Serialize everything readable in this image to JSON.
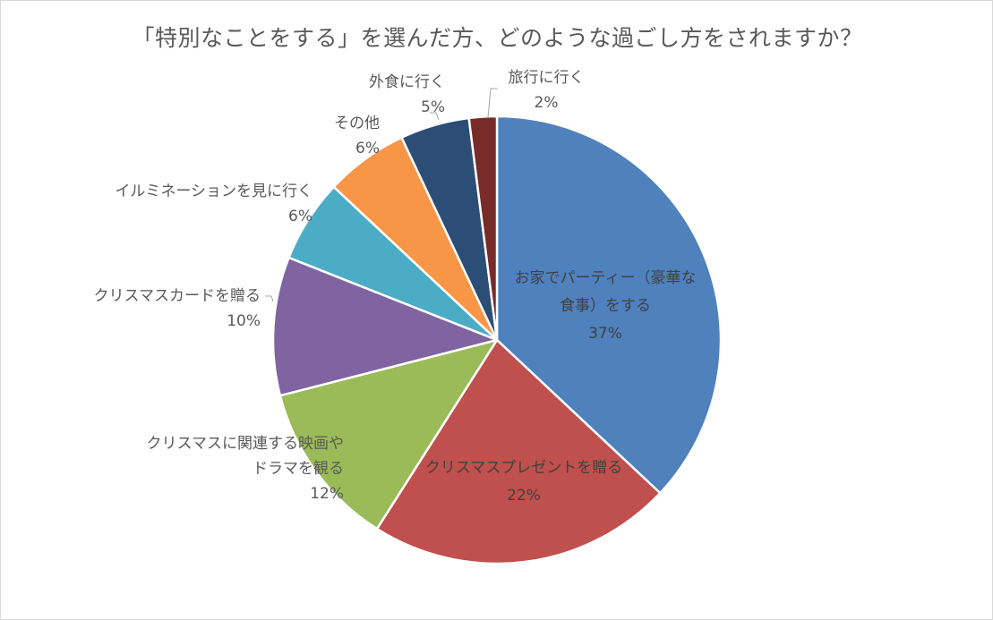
{
  "chart_data": {
    "type": "pie",
    "title": "「特別なことをする」を選んだ方、どのような過ごし方をされますか？",
    "slices": [
      {
        "label_lines": [
          "お家でパーティー（豪華な",
          "食事）をする"
        ],
        "value": 37,
        "value_label": "37%",
        "color": "#4F81BD"
      },
      {
        "label_lines": [
          "クリスマスプレゼントを贈る"
        ],
        "value": 22,
        "value_label": "22%",
        "color": "#C0504D"
      },
      {
        "label_lines": [
          "クリスマスに関連する映画や",
          "ドラマを観る"
        ],
        "value": 12,
        "value_label": "12%",
        "color": "#9BBB59"
      },
      {
        "label_lines": [
          "クリスマスカードを贈る"
        ],
        "value": 10,
        "value_label": "10%",
        "color": "#8064A2"
      },
      {
        "label_lines": [
          "イルミネーションを見に行く"
        ],
        "value": 6,
        "value_label": "6%",
        "color": "#4BACC6"
      },
      {
        "label_lines": [
          "その他"
        ],
        "value": 6,
        "value_label": "6%",
        "color": "#F79646"
      },
      {
        "label_lines": [
          "外食に行く"
        ],
        "value": 5,
        "value_label": "5%",
        "color": "#2C4D75"
      },
      {
        "label_lines": [
          "旅行に行く"
        ],
        "value": 2,
        "value_label": "2%",
        "color": "#772C2A"
      }
    ],
    "start_angle_deg": 0,
    "direction": "clockwise",
    "legend": "none"
  }
}
